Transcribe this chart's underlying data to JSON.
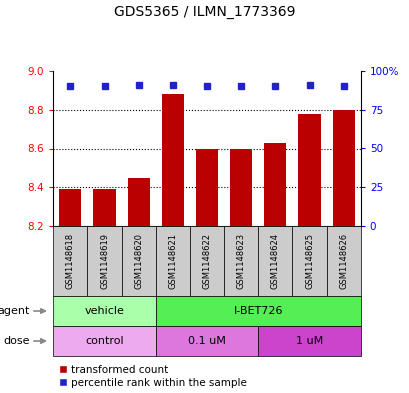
{
  "title": "GDS5365 / ILMN_1773369",
  "samples": [
    "GSM1148618",
    "GSM1148619",
    "GSM1148620",
    "GSM1148621",
    "GSM1148622",
    "GSM1148623",
    "GSM1148624",
    "GSM1148625",
    "GSM1148626"
  ],
  "bar_values": [
    8.39,
    8.39,
    8.45,
    8.88,
    8.6,
    8.6,
    8.63,
    8.78,
    8.8
  ],
  "percentile_values": [
    90,
    90,
    91,
    91,
    90,
    90,
    90,
    91,
    90
  ],
  "bar_bottom": 8.2,
  "ylim_left": [
    8.2,
    9.0
  ],
  "ylim_right": [
    0,
    100
  ],
  "yticks_left": [
    8.2,
    8.4,
    8.6,
    8.8,
    9.0
  ],
  "yticks_right": [
    0,
    25,
    50,
    75,
    100
  ],
  "ytick_labels_right": [
    "0",
    "25",
    "50",
    "75",
    "100%"
  ],
  "bar_color": "#bb0000",
  "dot_color": "#2222cc",
  "agent_groups": [
    {
      "label": "vehicle",
      "start": 0,
      "end": 3,
      "color": "#aaffaa"
    },
    {
      "label": "I-BET726",
      "start": 3,
      "end": 9,
      "color": "#55ee55"
    }
  ],
  "dose_groups": [
    {
      "label": "control",
      "start": 0,
      "end": 3,
      "color": "#eeaaee"
    },
    {
      "label": "0.1 uM",
      "start": 3,
      "end": 6,
      "color": "#dd77dd"
    },
    {
      "label": "1 uM",
      "start": 6,
      "end": 9,
      "color": "#cc44cc"
    }
  ],
  "legend_red_label": "transformed count",
  "legend_blue_label": "percentile rank within the sample",
  "background_color": "#ffffff",
  "sample_box_color": "#cccccc"
}
